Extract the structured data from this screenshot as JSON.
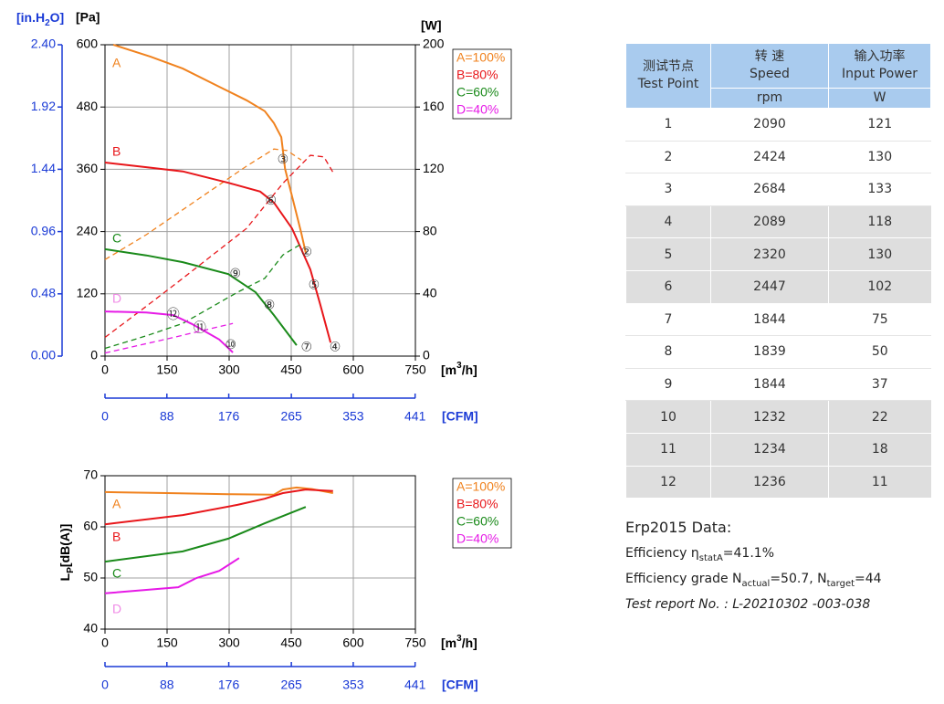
{
  "chart_data": [
    {
      "type": "line",
      "axis_labels": {
        "in_h2o": [
          "[in.H",
          "2",
          "O]"
        ],
        "pa": "[Pa]",
        "w": "[W]",
        "x": [
          "[m",
          "3",
          "/h]"
        ],
        "cfm": "[CFM]"
      },
      "xlim": [
        0,
        750
      ],
      "xticks": [
        0,
        150,
        300,
        450,
        600,
        750
      ],
      "ylim": [
        0,
        600
      ],
      "yticks": [
        0,
        120,
        240,
        360,
        480,
        600
      ],
      "y2lim": [
        0,
        200
      ],
      "y2ticks": [
        0,
        40,
        80,
        120,
        160,
        200
      ],
      "y3lim": [
        0,
        2.4
      ],
      "y3ticks": [
        {
          "value": 0,
          "label": "0.00"
        },
        0.48,
        0.96,
        1.44,
        1.92,
        {
          "value": 2.4,
          "label": "2.40"
        }
      ],
      "cfm_lim": [
        0,
        441.4
      ],
      "cfm_ticks": [
        0,
        88,
        176,
        265,
        353,
        441
      ],
      "grid": true,
      "series": [
        {
          "name": "A=100%",
          "color": "#f0821e",
          "letter": "A",
          "letter_color": "#f0821e",
          "pressure": {
            "x": [
              20,
              110,
              188,
              276,
              342,
              386,
              408,
              426,
              430,
              435,
              452,
              474,
              485
            ],
            "values": [
              600,
              577,
              554,
              519,
              493,
              472,
              449,
              422,
              396,
              361,
              308,
              238,
              199
            ]
          },
          "power": {
            "axis": "y2",
            "x": [
              0,
              100,
              188,
              276,
              342,
              408,
              440,
              474
            ],
            "values": [
              62,
              78,
              94,
              110,
              122,
              133,
              132,
              126
            ]
          }
        },
        {
          "name": "B=80%",
          "color": "#e8161a",
          "letter": "B",
          "letter_color": "#e8161a",
          "pressure": {
            "x": [
              0,
              100,
              188,
              298,
              375,
              408,
              452,
              496,
              520,
              545
            ],
            "values": [
              373,
              364,
              356,
              334,
              317,
              296,
              246,
              167,
              100,
              26
            ]
          },
          "power": {
            "axis": "y2",
            "x": [
              0,
              100,
              188,
              342,
              430,
              496,
              529,
              551
            ],
            "values": [
              12,
              32,
              50,
              82,
              111,
              129,
              128,
              118
            ]
          }
        },
        {
          "name": "C=60%",
          "color": "#1a8a1a",
          "letter": "C",
          "letter_color": "#1a8a1a",
          "pressure": {
            "x": [
              0,
              100,
              188,
              298,
              364,
              408,
              463
            ],
            "values": [
              206,
              194,
              181,
              158,
              123,
              79,
              21
            ]
          },
          "power": {
            "axis": "y2",
            "x": [
              0,
              100,
              188,
              320,
              386,
              430,
              474
            ],
            "values": [
              5,
              13,
              21,
              41,
              50,
              65,
              72
            ]
          }
        },
        {
          "name": "D=40%",
          "color": "#e61ae6",
          "letter": "D",
          "letter_color": "#f08ae6",
          "pressure": {
            "x": [
              0,
              100,
              165,
              210,
              276,
              309
            ],
            "values": [
              86,
              84,
              79,
              62,
              32,
              7
            ]
          },
          "power": {
            "axis": "y2",
            "x": [
              0,
              150,
              309
            ],
            "values": [
              2,
              11,
              21
            ]
          }
        }
      ],
      "markers": [
        {
          "label": "②",
          "x": 487,
          "y": 199
        },
        {
          "label": "③",
          "x": 430,
          "y": 378
        },
        {
          "label": "④",
          "x": 556,
          "y": 16
        },
        {
          "label": "⑤",
          "x": 505,
          "y": 136
        },
        {
          "label": "⑥",
          "x": 401,
          "y": 299
        },
        {
          "label": "⑦",
          "x": 487,
          "y": 16
        },
        {
          "label": "⑧",
          "x": 397,
          "y": 97
        },
        {
          "label": "⑨",
          "x": 315,
          "y": 158
        },
        {
          "label": "⑩",
          "x": 304,
          "y": 21
        },
        {
          "label": "⑪",
          "x": 229,
          "y": 53
        },
        {
          "label": "⑫",
          "x": 165,
          "y": 79
        }
      ]
    },
    {
      "type": "line",
      "axis_labels": {
        "y": [
          "L",
          "P",
          "[dB(A)]"
        ],
        "x": [
          "[m",
          "3",
          "/h]"
        ],
        "cfm": "[CFM]"
      },
      "xlim": [
        0,
        750
      ],
      "xticks": [
        0,
        150,
        300,
        450,
        600,
        750
      ],
      "ylim": [
        40,
        70
      ],
      "yticks": [
        40,
        50,
        60,
        70
      ],
      "cfm_lim": [
        0,
        441.4
      ],
      "cfm_ticks": [
        0,
        88,
        176,
        265,
        353,
        441
      ],
      "grid": true,
      "series": [
        {
          "name": "A=100%",
          "color": "#f0821e",
          "letter": "A",
          "letter_color": "#f0821e",
          "x": [
            0,
            150,
            298,
            408,
            430,
            463,
            500,
            551
          ],
          "values": [
            66.8,
            66.6,
            66.4,
            66.3,
            67.3,
            67.7,
            67.4,
            66.6
          ]
        },
        {
          "name": "B=80%",
          "color": "#e8161a",
          "letter": "B",
          "letter_color": "#e8161a",
          "x": [
            0,
            188,
            320,
            386,
            430,
            485,
            551
          ],
          "values": [
            60.5,
            62.3,
            64.3,
            65.5,
            66.6,
            67.3,
            67.0
          ]
        },
        {
          "name": "C=60%",
          "color": "#1a8a1a",
          "letter": "C",
          "letter_color": "#1a8a1a",
          "x": [
            0,
            188,
            298,
            386,
            485
          ],
          "values": [
            53.2,
            55.2,
            57.7,
            60.7,
            63.9
          ]
        },
        {
          "name": "D=40%",
          "color": "#e61ae6",
          "letter": "D",
          "letter_color": "#f08ae6",
          "x": [
            0,
            177,
            221,
            276,
            324
          ],
          "values": [
            47.0,
            48.2,
            50.0,
            51.4,
            53.9
          ]
        }
      ]
    }
  ],
  "table": {
    "header": [
      [
        "测试节点",
        "Test Point"
      ],
      [
        "转 速",
        "Speed"
      ],
      [
        "输入功率",
        "Input Power"
      ]
    ],
    "units": [
      "rpm",
      "W"
    ],
    "rows": [
      [
        1,
        2090,
        121
      ],
      [
        2,
        2424,
        130
      ],
      [
        3,
        2684,
        133
      ],
      [
        4,
        2089,
        118
      ],
      [
        5,
        2320,
        130
      ],
      [
        6,
        2447,
        102
      ],
      [
        7,
        1844,
        75
      ],
      [
        8,
        1839,
        50
      ],
      [
        9,
        1844,
        37
      ],
      [
        10,
        1232,
        22
      ],
      [
        11,
        1234,
        18
      ],
      [
        12,
        1236,
        11
      ]
    ]
  },
  "erp": {
    "title": "Erp2015  Data:",
    "efficiency": [
      "Efficiency η",
      "statA",
      "=41.1%"
    ],
    "grade": [
      "Efficiency grade  N",
      "actual",
      "=50.7, N",
      "target",
      "=44"
    ],
    "report": "Test report No. : L-20210302 -003-038"
  }
}
